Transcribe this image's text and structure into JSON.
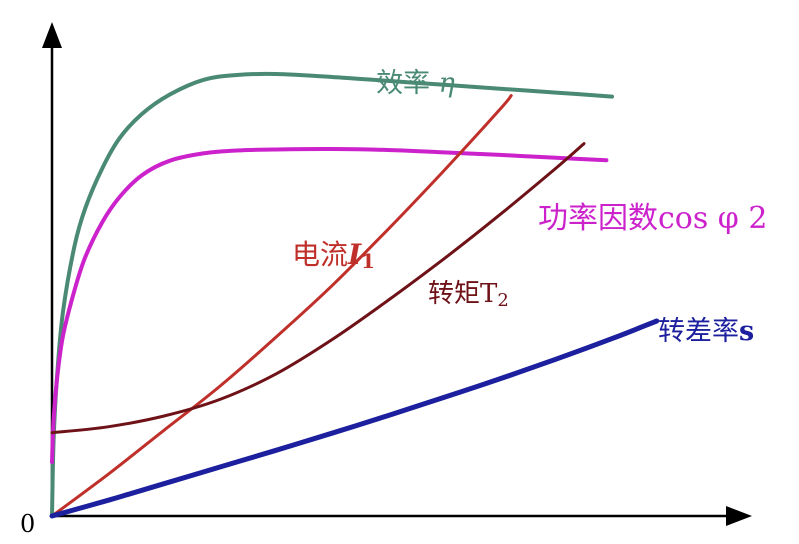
{
  "chart_data": {
    "type": "line",
    "title": "",
    "xlabel": "",
    "ylabel": "",
    "origin_label": "0",
    "xlim": [
      0,
      100
    ],
    "ylim": [
      0,
      100
    ],
    "grid": false,
    "legend": "none",
    "series": [
      {
        "name": "效率 η",
        "name_parts": [
          "效率 ",
          "η"
        ],
        "color": "#4a8a74",
        "x": [
          0,
          0.3,
          1,
          2,
          4,
          6,
          9,
          12,
          16,
          21,
          27,
          33,
          40,
          50,
          60,
          70,
          80,
          90,
          100
        ],
        "y": [
          0,
          16,
          30,
          42,
          55,
          63,
          71,
          77,
          82,
          86,
          89,
          90,
          90.2,
          89.6,
          88.8,
          88,
          87.2,
          86.4,
          85.6
        ]
      },
      {
        "name": "功率因数cos φ 2",
        "name_parts": [
          "功率因数cos ",
          "φ",
          " 2"
        ],
        "color": "#cc22cc",
        "x": [
          0,
          0.3,
          1,
          2,
          4,
          6,
          9,
          12,
          16,
          21,
          27,
          33,
          40,
          50,
          60,
          70,
          80,
          90,
          99
        ],
        "y": [
          11,
          20,
          29,
          37,
          46,
          53,
          60,
          65,
          69.5,
          72.5,
          74,
          74.6,
          74.8,
          74.9,
          74.7,
          74.2,
          73.7,
          73.1,
          72.6
        ]
      },
      {
        "name": "电流I1",
        "name_parts": [
          "电流",
          "I",
          "1"
        ],
        "color": "#c0302a",
        "x": [
          0,
          10,
          20,
          30,
          40,
          50,
          60,
          70,
          80,
          82
        ],
        "y": [
          0,
          8.5,
          17.5,
          26.5,
          36.5,
          47,
          58.5,
          70.5,
          83,
          85.8
        ]
      },
      {
        "name": "转矩T2",
        "name_parts": [
          "转矩",
          "T",
          "2"
        ],
        "color": "#6e1218",
        "x": [
          0,
          10,
          20,
          30,
          40,
          50,
          60,
          70,
          80,
          90,
          95
        ],
        "y": [
          17,
          18.2,
          20.4,
          23.8,
          29,
          36,
          44,
          52.5,
          61.5,
          71,
          76
        ]
      },
      {
        "name": "转差率s",
        "name_parts": [
          "转差率",
          "s"
        ],
        "color": "#1c1f9e",
        "x": [
          0,
          10,
          20,
          30,
          40,
          50,
          60,
          70,
          80,
          90,
          100,
          108
        ],
        "y": [
          0,
          3.2,
          6.6,
          10,
          13.4,
          16.9,
          20.5,
          24.2,
          28,
          32,
          36.2,
          39.8
        ]
      }
    ]
  }
}
